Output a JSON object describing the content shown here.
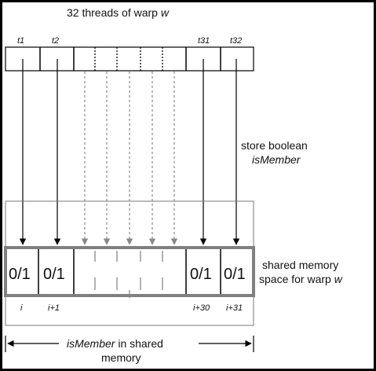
{
  "title": {
    "prefix": "32 threads of warp ",
    "var": "w"
  },
  "thread_labels": [
    "t1",
    "t2",
    "t31",
    "t32"
  ],
  "store_label": {
    "line1": "store boolean",
    "line2": "isMember"
  },
  "cell_values": [
    "0/1",
    "0/1",
    "0/1",
    "0/1"
  ],
  "shared_label": {
    "line1": "shared memory",
    "line2_prefix": "space for warp ",
    "line2_var": "w"
  },
  "index_labels": [
    "i",
    "i+1",
    "i+30",
    "i+31"
  ],
  "bottom_label": {
    "var": "isMember",
    "rest": " in shared",
    "line2": "memory"
  },
  "colors": {
    "border": "#000000",
    "memory_border": "#808080",
    "dashed_arrow": "#888888",
    "box_outline": "#777777"
  }
}
